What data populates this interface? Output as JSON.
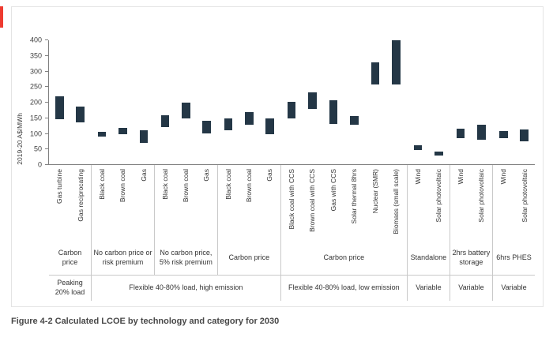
{
  "caption": "Figure 4-2 Calculated LCOE by technology and category for 2030",
  "accent_color": "#ee3b30",
  "chart_data": {
    "type": "bar",
    "subtype": "floating-range",
    "title": "",
    "ylabel": "2019-20 A$/MWh",
    "ylim": [
      0,
      400
    ],
    "yticks": [
      0,
      50,
      100,
      150,
      200,
      250,
      300,
      350,
      400
    ],
    "bar_color": "#243746",
    "grid": false,
    "supergroups": [
      {
        "label": "Peaking 20% load",
        "groups": [
          {
            "label": "Carbon price",
            "bars": [
              {
                "tech": "Gas turbine",
                "low": 145,
                "high": 220
              },
              {
                "tech": "Gas reciprocating",
                "low": 135,
                "high": 185
              }
            ]
          }
        ]
      },
      {
        "label": "Flexible 40-80% load, high emission",
        "groups": [
          {
            "label": "No carbon price or risk premium",
            "bars": [
              {
                "tech": "Black coal",
                "low": 90,
                "high": 105
              },
              {
                "tech": "Brown coal",
                "low": 97,
                "high": 117
              },
              {
                "tech": "Gas",
                "low": 68,
                "high": 110
              }
            ]
          },
          {
            "label": "No carbon price, 5% risk premium",
            "bars": [
              {
                "tech": "Black coal",
                "low": 120,
                "high": 158
              },
              {
                "tech": "Brown coal",
                "low": 148,
                "high": 198
              },
              {
                "tech": "Gas",
                "low": 100,
                "high": 140
              }
            ]
          },
          {
            "label": "Carbon price",
            "bars": [
              {
                "tech": "Black coal",
                "low": 110,
                "high": 148
              },
              {
                "tech": "Brown coal",
                "low": 128,
                "high": 168
              },
              {
                "tech": "Gas",
                "low": 97,
                "high": 147
              }
            ]
          }
        ]
      },
      {
        "label": "Flexible 40-80% load, low emission",
        "groups": [
          {
            "label": "Carbon price",
            "bars": [
              {
                "tech": "Black coal with CCS",
                "low": 148,
                "high": 202
              },
              {
                "tech": "Brown coal with CCS",
                "low": 178,
                "high": 232
              },
              {
                "tech": "Gas with CCS",
                "low": 130,
                "high": 207
              },
              {
                "tech": "Solar thermal 8hrs",
                "low": 128,
                "high": 155
              },
              {
                "tech": "Nuclear (SMR)",
                "low": 257,
                "high": 330
              },
              {
                "tech": "Biomass (small scale)",
                "low": 257,
                "high": 400
              }
            ]
          }
        ]
      },
      {
        "label": "Variable",
        "groups": [
          {
            "label": "Standalone",
            "bars": [
              {
                "tech": "Wind",
                "low": 45,
                "high": 62
              },
              {
                "tech": "Solar photovoltaic",
                "low": 27,
                "high": 42
              }
            ]
          }
        ]
      },
      {
        "label": "Variable",
        "groups": [
          {
            "label": "2hrs battery storage",
            "bars": [
              {
                "tech": "Wind",
                "low": 85,
                "high": 115
              },
              {
                "tech": "Solar photovoltaic",
                "low": 78,
                "high": 127
              }
            ]
          }
        ]
      },
      {
        "label": "Variable",
        "groups": [
          {
            "label": "6hrs PHES",
            "bars": [
              {
                "tech": "Wind",
                "low": 85,
                "high": 107
              },
              {
                "tech": "Solar photovoltaic",
                "low": 73,
                "high": 112
              }
            ]
          }
        ]
      }
    ]
  }
}
